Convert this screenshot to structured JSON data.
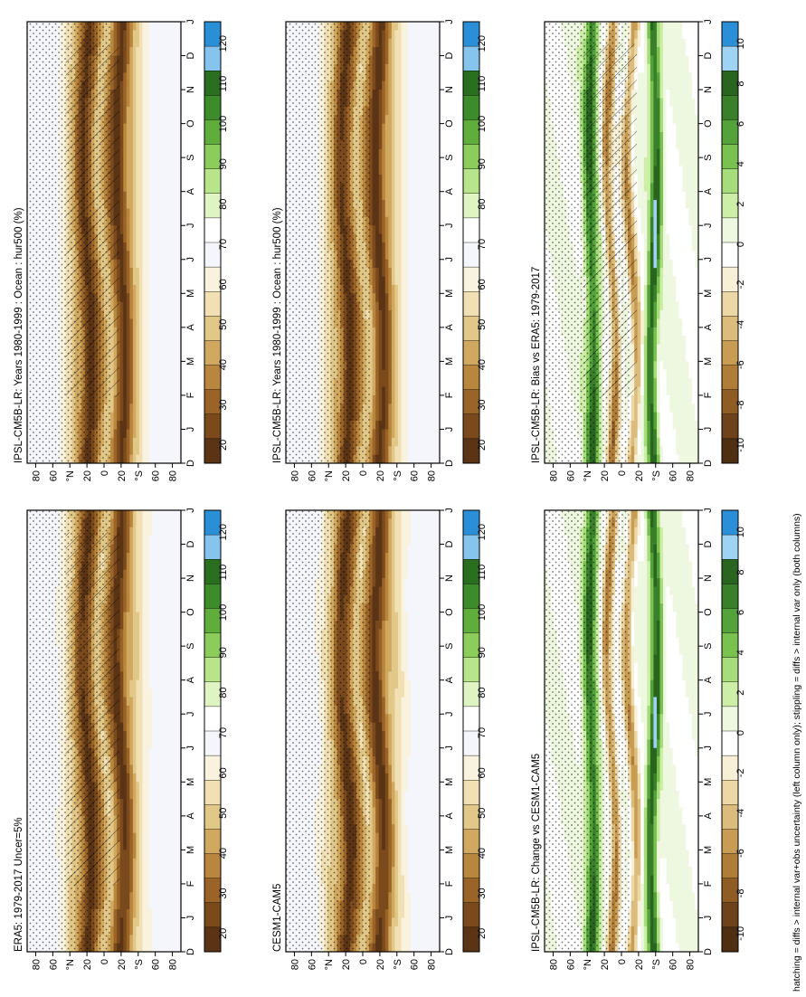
{
  "figure": {
    "footnote": "hatching = diffs > internal var+obs uncertainty (left column only); stippling = diffs > internal var only (both columns)"
  },
  "months": [
    "D",
    "J",
    "F",
    "M",
    "A",
    "M",
    "J",
    "J",
    "A",
    "S",
    "O",
    "N",
    "D",
    "J"
  ],
  "lat_ticks": [
    "80",
    "60",
    "°N",
    "20",
    "0",
    "20",
    "°S",
    "60",
    "80"
  ],
  "colors": {
    "abs": [
      "#5a3414",
      "#7a4a1c",
      "#9a6428",
      "#b8863c",
      "#d0a860",
      "#e2c888",
      "#f0e0b4",
      "#f8f2de",
      "#f4f6fb",
      "#ffffff",
      "#dff3c3",
      "#b8e48c",
      "#8ccc5a",
      "#5fae3c",
      "#3c8c2c",
      "#2a6e1f",
      "#86c4ee",
      "#2a8fd6"
    ],
    "diff": [
      "#4f2f12",
      "#6e421a",
      "#8f5c24",
      "#b07d38",
      "#c99c54",
      "#dcbc7c",
      "#ecd8a6",
      "#f7efd6",
      "#ffffff",
      "#eef8e0",
      "#cdeea6",
      "#a6dc7a",
      "#79c250",
      "#54a23a",
      "#3a7f2a",
      "#2a6520",
      "#9ed3f3",
      "#2a8fd6"
    ]
  },
  "panels": [
    {
      "id": "model",
      "title": "IPSL-CM5B-LR: Years 1980-1999 : Ocean : hur500 (%)",
      "colorbar_labels": [
        "120",
        "110",
        "100",
        "90",
        "80",
        "70",
        "60",
        "50",
        "40",
        "30",
        "20"
      ]
    },
    {
      "id": "model-right",
      "title": "IPSL-CM5B-LR: Years 1980-1999 : Ocean : hur500 (%)",
      "colorbar_labels": [
        "120",
        "110",
        "100",
        "90",
        "80",
        "70",
        "60",
        "50",
        "40",
        "30",
        "20"
      ]
    },
    {
      "id": "obs",
      "title": "ERA5: 1979-2017 Uncer=5%",
      "colorbar_labels": [
        "120",
        "110",
        "100",
        "90",
        "80",
        "70",
        "60",
        "50",
        "40",
        "30",
        "20"
      ]
    },
    {
      "id": "ref-model",
      "title": "CESM1-CAM5",
      "colorbar_labels": [
        "120",
        "110",
        "100",
        "90",
        "80",
        "70",
        "60",
        "50",
        "40",
        "30",
        "20"
      ]
    },
    {
      "id": "bias",
      "title": "IPSL-CM5B-LR: Bias vs ERA5: 1979-2017",
      "colorbar_labels": [
        "10",
        "8",
        "6",
        "4",
        "2",
        "0",
        "-2",
        "-4",
        "-6",
        "-8",
        "-10"
      ]
    },
    {
      "id": "change",
      "title": "IPSL-CM5B-LR: Change vs CESM1-CAM5",
      "colorbar_labels": [
        "10",
        "8",
        "6",
        "4",
        "2",
        "0",
        "-2",
        "-4",
        "-6",
        "-8",
        "-10"
      ]
    }
  ],
  "chart_data": [
    {
      "type": "heatmap",
      "title": "IPSL-CM5B-LR: Years 1980-1999 : Ocean : hur500 (%)",
      "x_categories": [
        "D",
        "J",
        "F",
        "M",
        "A",
        "M",
        "J",
        "J",
        "A",
        "S",
        "O",
        "N",
        "D",
        "J"
      ],
      "y_ticks": [
        "80",
        "60",
        "°N",
        "20",
        "0",
        "20",
        "°S",
        "60",
        "80"
      ],
      "ylim": [
        -90,
        90
      ],
      "colorbar": {
        "min": 15,
        "max": 125,
        "ticks": [
          120,
          110,
          100,
          90,
          80,
          70,
          60,
          50,
          40,
          30,
          20
        ]
      }
    },
    {
      "type": "heatmap",
      "title": "IPSL-CM5B-LR: Years 1980-1999 : Ocean : hur500 (%)",
      "x_categories": [
        "D",
        "J",
        "F",
        "M",
        "A",
        "M",
        "J",
        "J",
        "A",
        "S",
        "O",
        "N",
        "D",
        "J"
      ],
      "y_ticks": [
        "80",
        "60",
        "°N",
        "20",
        "0",
        "20",
        "°S",
        "60",
        "80"
      ],
      "ylim": [
        -90,
        90
      ],
      "colorbar": {
        "min": 15,
        "max": 125,
        "ticks": [
          120,
          110,
          100,
          90,
          80,
          70,
          60,
          50,
          40,
          30,
          20
        ]
      }
    },
    {
      "type": "heatmap",
      "title": "ERA5: 1979-2017 Uncer=5%",
      "x_categories": [
        "D",
        "J",
        "F",
        "M",
        "A",
        "M",
        "J",
        "J",
        "A",
        "S",
        "O",
        "N",
        "D",
        "J"
      ],
      "y_ticks": [
        "80",
        "60",
        "°N",
        "20",
        "0",
        "20",
        "°S",
        "60",
        "80"
      ],
      "ylim": [
        -90,
        90
      ],
      "colorbar": {
        "min": 15,
        "max": 125,
        "ticks": [
          120,
          110,
          100,
          90,
          80,
          70,
          60,
          50,
          40,
          30,
          20
        ]
      }
    },
    {
      "type": "heatmap",
      "title": "CESM1-CAM5",
      "x_categories": [
        "D",
        "J",
        "F",
        "M",
        "A",
        "M",
        "J",
        "J",
        "A",
        "S",
        "O",
        "N",
        "D",
        "J"
      ],
      "y_ticks": [
        "80",
        "60",
        "°N",
        "20",
        "0",
        "20",
        "°S",
        "60",
        "80"
      ],
      "ylim": [
        -90,
        90
      ],
      "colorbar": {
        "min": 15,
        "max": 125,
        "ticks": [
          120,
          110,
          100,
          90,
          80,
          70,
          60,
          50,
          40,
          30,
          20
        ]
      }
    },
    {
      "type": "heatmap",
      "title": "IPSL-CM5B-LR: Bias vs ERA5: 1979-2017",
      "x_categories": [
        "D",
        "J",
        "F",
        "M",
        "A",
        "M",
        "J",
        "J",
        "A",
        "S",
        "O",
        "N",
        "D",
        "J"
      ],
      "y_ticks": [
        "80",
        "60",
        "°N",
        "20",
        "0",
        "20",
        "°S",
        "60",
        "80"
      ],
      "ylim": [
        -90,
        90
      ],
      "colorbar": {
        "min": -12,
        "max": 12,
        "ticks": [
          10,
          8,
          6,
          4,
          2,
          0,
          -2,
          -4,
          -6,
          -8,
          -10
        ]
      }
    },
    {
      "type": "heatmap",
      "title": "IPSL-CM5B-LR: Change vs CESM1-CAM5",
      "x_categories": [
        "D",
        "J",
        "F",
        "M",
        "A",
        "M",
        "J",
        "J",
        "A",
        "S",
        "O",
        "N",
        "D",
        "J"
      ],
      "y_ticks": [
        "80",
        "60",
        "°N",
        "20",
        "0",
        "20",
        "°S",
        "60",
        "80"
      ],
      "ylim": [
        -90,
        90
      ],
      "colorbar": {
        "min": -12,
        "max": 12,
        "ticks": [
          10,
          8,
          6,
          4,
          2,
          0,
          -2,
          -4,
          -6,
          -8,
          -10
        ]
      }
    }
  ]
}
